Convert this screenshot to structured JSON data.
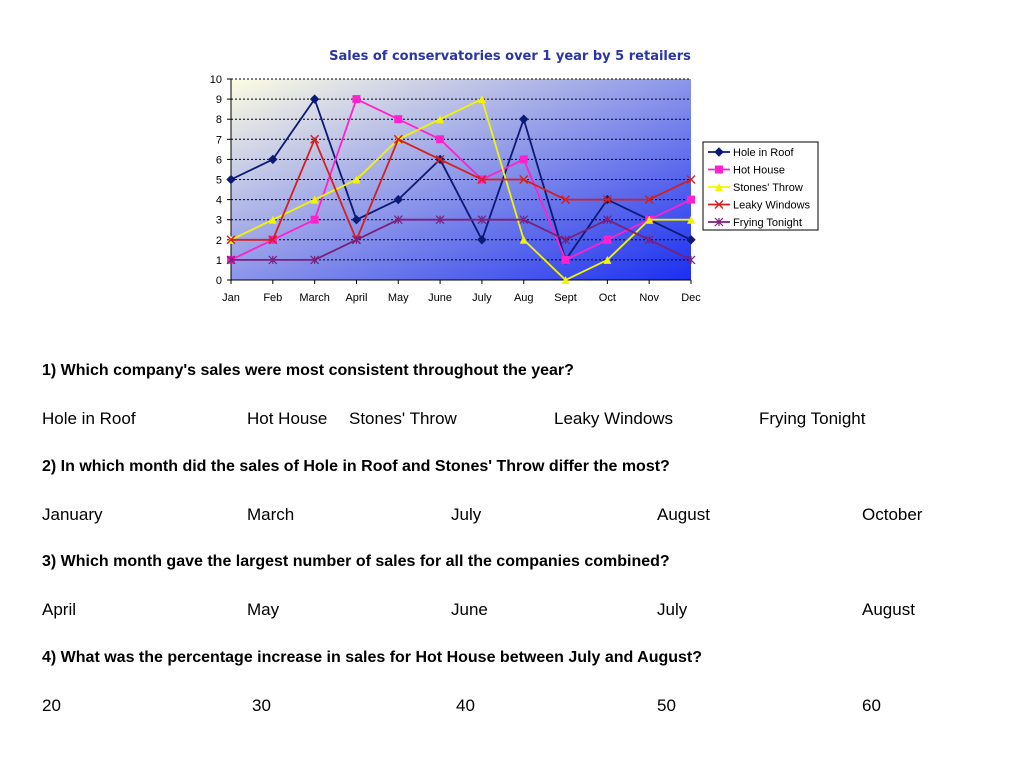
{
  "colors": {
    "hole_in_roof": "#0c1a75",
    "hot_house": "#ff22cc",
    "stones_throw": "#f4f400",
    "leaky_windows": "#d41f1f",
    "frying_tonight": "#7b1f7b",
    "plot_bg_light": "#fdfde3",
    "plot_bg_dark": "#1b2ff0",
    "title": "#2a35a6"
  },
  "chart_data": {
    "type": "line",
    "title": "Sales of conservatories over 1 year by 5 retailers",
    "xlabel": "",
    "ylabel": "",
    "categories": [
      "Jan",
      "Feb",
      "March",
      "April",
      "May",
      "June",
      "July",
      "Aug",
      "Sept",
      "Oct",
      "Nov",
      "Dec"
    ],
    "ylim": [
      0,
      10
    ],
    "yticks": [
      "0",
      "1",
      "2",
      "3",
      "4",
      "5",
      "6",
      "7",
      "8",
      "9",
      "10"
    ],
    "grid": true,
    "legend_position": "right",
    "series": [
      {
        "name": "Hole in Roof",
        "color": "#0c1a75",
        "marker": "diamond",
        "values": [
          5,
          6,
          9,
          3,
          4,
          6,
          2,
          8,
          1,
          4,
          3,
          2
        ]
      },
      {
        "name": "Hot House",
        "color": "#ff22cc",
        "marker": "square",
        "values": [
          1,
          2,
          3,
          9,
          8,
          7,
          5,
          6,
          1,
          2,
          3,
          4
        ]
      },
      {
        "name": "Stones' Throw",
        "color": "#f4f400",
        "marker": "triangle",
        "values": [
          2,
          3,
          4,
          5,
          7,
          8,
          9,
          2,
          0,
          1,
          3,
          3
        ]
      },
      {
        "name": "Leaky Windows",
        "color": "#d41f1f",
        "marker": "x",
        "values": [
          2,
          2,
          7,
          2,
          7,
          6,
          5,
          5,
          4,
          4,
          4,
          5
        ]
      },
      {
        "name": "Frying Tonight",
        "color": "#7b1f7b",
        "marker": "star",
        "values": [
          1,
          1,
          1,
          2,
          3,
          3,
          3,
          3,
          2,
          3,
          2,
          1
        ]
      }
    ]
  },
  "questions": [
    {
      "text": "1) Which company's sales were most consistent throughout the year?",
      "answers": [
        "Hole in Roof",
        "Hot House",
        "Stones' Throw",
        "Leaky Windows",
        "Frying Tonight"
      ]
    },
    {
      "text": "2) In which month did the sales of Hole in Roof and Stones' Throw differ the most?",
      "answers": [
        "January",
        "March",
        "July",
        "August",
        "October"
      ]
    },
    {
      "text": "3) Which month gave the largest number of sales for all the companies combined?",
      "answers": [
        "April",
        "May",
        "June",
        "July",
        "August"
      ]
    },
    {
      "text": "4) What was the percentage increase in sales for Hot House between July and August?",
      "answers": [
        "20",
        "30",
        "40",
        "50",
        "60"
      ]
    }
  ]
}
